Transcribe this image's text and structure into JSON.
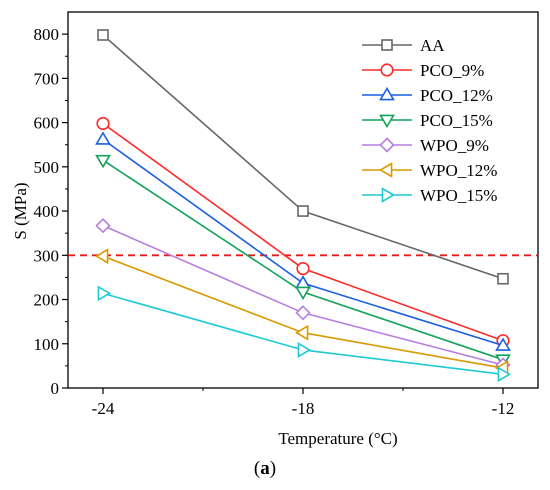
{
  "chart_data": {
    "type": "line",
    "x": [
      "-24",
      "-18",
      "-12"
    ],
    "xlabel": "Temperature (°C)",
    "ylabel": "S (MPa)",
    "ylim": [
      0,
      850
    ],
    "yticks": [
      "0",
      "100",
      "200",
      "300",
      "400",
      "500",
      "600",
      "700",
      "800"
    ],
    "reference_line": {
      "y": 300,
      "color": "#e41a1c",
      "style": "dashed"
    },
    "legend_position": "top-right",
    "grid": false,
    "series": [
      {
        "name": "AA",
        "values": [
          798,
          400,
          247
        ],
        "color": "#666666",
        "marker": "square"
      },
      {
        "name": "PCO_9%",
        "values": [
          598,
          270,
          107
        ],
        "color": "#ff2a2a",
        "marker": "circle"
      },
      {
        "name": "PCO_12%",
        "values": [
          562,
          237,
          96
        ],
        "color": "#1c5fe0",
        "marker": "triangle-up"
      },
      {
        "name": "PCO_15%",
        "values": [
          515,
          217,
          64
        ],
        "color": "#13a35a",
        "marker": "triangle-down"
      },
      {
        "name": "WPO_9%",
        "values": [
          367,
          170,
          52
        ],
        "color": "#b77ee0",
        "marker": "diamond"
      },
      {
        "name": "WPO_12%",
        "values": [
          298,
          125,
          45
        ],
        "color": "#d89a00",
        "marker": "triangle-left"
      },
      {
        "name": "WPO_15%",
        "values": [
          214,
          86,
          31
        ],
        "color": "#1ecad4",
        "marker": "triangle-right"
      }
    ]
  },
  "caption": {
    "open": "(",
    "letter": "a",
    "close": ")"
  }
}
